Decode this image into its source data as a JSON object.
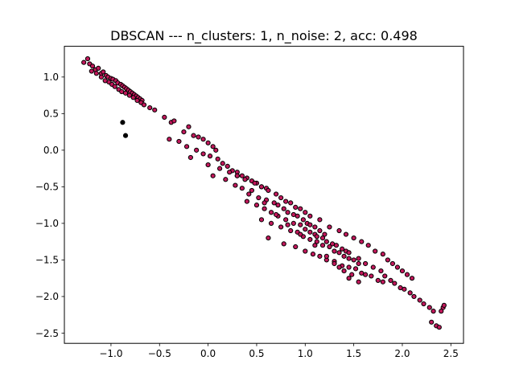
{
  "chart_data": {
    "type": "scatter",
    "title": "DBSCAN --- n_clusters: 1, n_noise: 2, acc: 0.498",
    "xlabel": "",
    "ylabel": "",
    "xlim": [
      -1.48,
      2.63
    ],
    "ylim": [
      -2.64,
      1.42
    ],
    "xticks": [
      -1.0,
      -0.5,
      0.0,
      0.5,
      1.0,
      1.5,
      2.0,
      2.5
    ],
    "xtick_labels": [
      "−1.0",
      "−0.5",
      "0.0",
      "0.5",
      "1.0",
      "1.5",
      "2.0",
      "2.5"
    ],
    "yticks": [
      1.0,
      0.5,
      0.0,
      -0.5,
      -1.0,
      -1.5,
      -2.0,
      -2.5
    ],
    "ytick_labels": [
      "1.0",
      "0.5",
      "0.0",
      "−0.5",
      "−1.0",
      "−1.5",
      "−2.0",
      "−2.5"
    ],
    "grid": false,
    "legend": "none",
    "colors": {
      "cluster": "#c2185b",
      "noise": "#000000",
      "edge": "#000000",
      "axes": "#000000"
    },
    "series": [
      {
        "values_x": [
          -1.28,
          -1.24,
          -1.22,
          -1.19,
          -1.16,
          -1.13,
          -1.1,
          -1.08,
          -1.05,
          -1.03,
          -1.0,
          -0.98,
          -0.95,
          -0.93,
          -0.9,
          -0.88,
          -0.86,
          -0.84,
          -0.82,
          -0.8,
          -0.78,
          -0.76,
          -0.74,
          -0.72,
          -0.7,
          -0.68,
          -1.2,
          -1.15,
          -1.1,
          -1.06,
          -1.02,
          -0.99,
          -0.96,
          -0.92,
          -0.89,
          -0.85,
          -0.81,
          -0.77,
          -0.73,
          -0.69,
          -0.66,
          -0.6,
          -0.55,
          -0.45,
          -0.38,
          -0.35,
          -0.2,
          -0.25,
          -0.15,
          -0.1,
          -0.05,
          0.0,
          0.05,
          0.08,
          -0.4,
          -0.3,
          -0.22,
          -0.12,
          -0.05,
          0.02,
          0.1,
          0.15,
          0.2,
          0.25,
          0.3,
          0.35,
          0.4,
          0.45,
          0.5,
          0.55,
          0.6,
          -0.18,
          0.0,
          0.12,
          0.22,
          0.3,
          0.38,
          0.48,
          0.55,
          0.62,
          0.7,
          0.75,
          0.8,
          0.85,
          0.9,
          0.95,
          1.0,
          0.05,
          0.18,
          0.28,
          0.35,
          0.42,
          0.52,
          0.6,
          0.68,
          0.72,
          0.78,
          0.82,
          0.88,
          0.92,
          0.98,
          1.02,
          1.05,
          1.1,
          1.15,
          1.2,
          0.4,
          0.5,
          0.58,
          0.65,
          0.72,
          0.8,
          0.88,
          0.95,
          1.0,
          1.05,
          1.1,
          1.12,
          1.18,
          1.22,
          1.28,
          1.32,
          1.38,
          1.42,
          0.55,
          0.65,
          0.75,
          0.85,
          0.92,
          0.98,
          1.05,
          1.12,
          1.18,
          1.25,
          1.3,
          1.35,
          1.4,
          1.45,
          1.5,
          1.55,
          0.62,
          0.78,
          0.9,
          1.0,
          1.08,
          1.15,
          1.22,
          1.3,
          1.38,
          1.45,
          1.52,
          1.58,
          1.62,
          1.68,
          1.75,
          1.8,
          1.05,
          1.15,
          1.25,
          1.35,
          1.42,
          1.5,
          1.58,
          1.65,
          1.72,
          1.8,
          1.85,
          1.9,
          1.95,
          2.0,
          2.05,
          2.1,
          1.45,
          1.55,
          1.62,
          1.7,
          1.78,
          1.82,
          1.88,
          1.92,
          1.98,
          2.02,
          2.08,
          2.12,
          2.18,
          2.22,
          2.28,
          2.32,
          2.3,
          2.35,
          2.38,
          2.4,
          2.42,
          2.43,
          1.3,
          1.4,
          1.48,
          1.55,
          0.3,
          0.45,
          0.58,
          0.7,
          0.82,
          0.95,
          1.1,
          1.22,
          1.35,
          1.45
        ],
        "values_y": [
          1.2,
          1.25,
          1.18,
          1.15,
          1.1,
          1.12,
          1.05,
          1.07,
          1.02,
          1.0,
          0.98,
          0.97,
          0.95,
          0.92,
          0.9,
          0.88,
          0.86,
          0.84,
          0.82,
          0.8,
          0.78,
          0.76,
          0.74,
          0.72,
          0.7,
          0.68,
          1.08,
          1.05,
          1.0,
          0.95,
          0.93,
          0.9,
          0.87,
          0.83,
          0.8,
          0.78,
          0.75,
          0.72,
          0.68,
          0.65,
          0.62,
          0.58,
          0.55,
          0.45,
          0.38,
          0.4,
          0.32,
          0.25,
          0.2,
          0.18,
          0.15,
          0.1,
          0.05,
          0.0,
          0.15,
          0.12,
          0.05,
          0.0,
          -0.05,
          -0.08,
          -0.12,
          -0.18,
          -0.22,
          -0.28,
          -0.3,
          -0.35,
          -0.38,
          -0.42,
          -0.45,
          -0.5,
          -0.52,
          -0.1,
          -0.2,
          -0.25,
          -0.3,
          -0.35,
          -0.4,
          -0.45,
          -0.5,
          -0.55,
          -0.6,
          -0.65,
          -0.7,
          -0.72,
          -0.78,
          -0.8,
          -0.85,
          -0.35,
          -0.4,
          -0.48,
          -0.52,
          -0.6,
          -0.65,
          -0.68,
          -0.72,
          -0.75,
          -0.8,
          -0.85,
          -0.88,
          -0.9,
          -0.95,
          -1.0,
          -1.02,
          -1.05,
          -1.1,
          -1.15,
          -0.7,
          -0.75,
          -0.8,
          -0.85,
          -0.9,
          -0.95,
          -1.0,
          -1.02,
          -1.08,
          -1.12,
          -1.15,
          -1.18,
          -1.2,
          -1.25,
          -1.28,
          -1.3,
          -1.35,
          -1.38,
          -0.95,
          -1.0,
          -1.05,
          -1.1,
          -1.12,
          -1.18,
          -1.22,
          -1.25,
          -1.3,
          -1.32,
          -1.38,
          -1.4,
          -1.45,
          -1.48,
          -1.5,
          -1.55,
          -1.2,
          -1.28,
          -1.32,
          -1.38,
          -1.42,
          -1.45,
          -1.5,
          -1.52,
          -1.58,
          -1.6,
          -1.62,
          -1.68,
          -1.7,
          -1.72,
          -1.78,
          -1.8,
          -0.9,
          -0.95,
          -1.05,
          -1.1,
          -1.15,
          -1.2,
          -1.25,
          -1.3,
          -1.38,
          -1.42,
          -1.5,
          -1.55,
          -1.6,
          -1.65,
          -1.7,
          -1.75,
          -1.4,
          -1.48,
          -1.55,
          -1.6,
          -1.65,
          -1.72,
          -1.78,
          -1.82,
          -1.88,
          -1.9,
          -1.95,
          -2.0,
          -2.05,
          -2.1,
          -2.15,
          -2.2,
          -2.35,
          -2.4,
          -2.42,
          -2.2,
          -2.15,
          -2.12,
          -1.55,
          -1.65,
          -1.7,
          -1.8,
          -0.35,
          -0.55,
          -0.72,
          -0.88,
          -1.02,
          -1.15,
          -1.3,
          -1.45,
          -1.6,
          -1.75
        ],
        "color": "#c2185b"
      },
      {
        "values_x": [
          -0.88,
          -0.85
        ],
        "values_y": [
          0.38,
          0.2
        ],
        "color": "#000000"
      }
    ]
  }
}
